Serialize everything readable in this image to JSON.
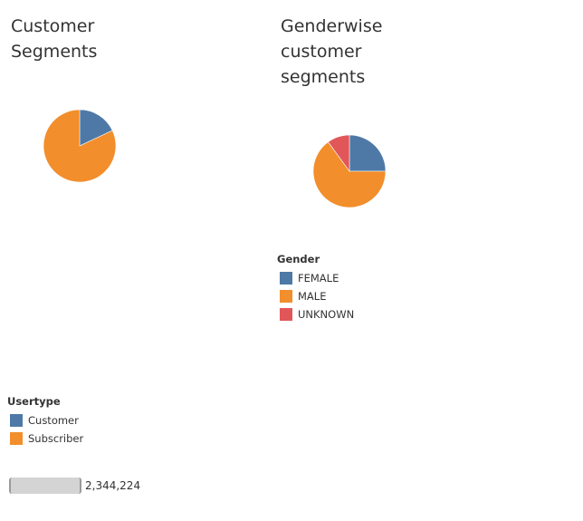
{
  "colors": {
    "blue": "#4e79a7",
    "orange": "#f28e2b",
    "red": "#e15759"
  },
  "chart_data": [
    {
      "type": "pie",
      "title": "Customer Segments",
      "title_lines": [
        "Customer",
        "Segments"
      ],
      "legend_title": "Usertype",
      "legend_placement": "bottom-left",
      "slices": [
        {
          "label": "Customer",
          "value": 18.0,
          "color": "#4e79a7"
        },
        {
          "label": "Subscriber",
          "value": 82.0,
          "color": "#f28e2b"
        }
      ]
    },
    {
      "type": "pie",
      "title": "Genderwise customer segments",
      "title_lines": [
        "Genderwise",
        "customer",
        "segments"
      ],
      "legend_title": "Gender",
      "legend_placement": "below",
      "slices": [
        {
          "label": "FEMALE",
          "value": 25.0,
          "color": "#4e79a7"
        },
        {
          "label": "MALE",
          "value": 65.0,
          "color": "#f28e2b"
        },
        {
          "label": "UNKNOWN",
          "value": 10.0,
          "color": "#e15759"
        }
      ]
    }
  ],
  "count_bar": {
    "value_label": "2,344,224"
  }
}
